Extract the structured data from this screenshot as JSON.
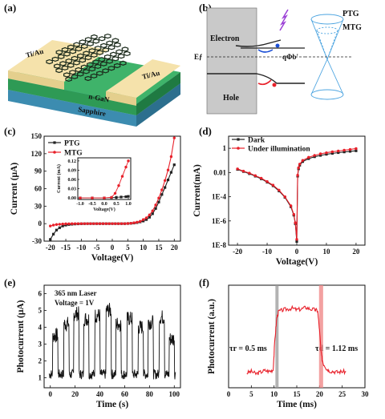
{
  "panels": {
    "a": {
      "label": "(a)",
      "electrode_left": "Ti/Au",
      "electrode_right": "Ti/Au",
      "layer_ngan": "n-GaN",
      "substrate": "Sapphire"
    },
    "b": {
      "label": "(b)",
      "electron": "Electron",
      "hole": "Hole",
      "ef": "Eƒ",
      "barrier": "qΦb'",
      "ptg": "PTG",
      "mtg": "MTG"
    },
    "c": {
      "label": "(c)"
    },
    "d": {
      "label": "(d)"
    },
    "e": {
      "label": "(e)",
      "note1": "365 nm Laser",
      "note2": "Voltage = 1V"
    },
    "f": {
      "label": "(f)",
      "tau_r": "τr = 0.5 ms",
      "tau_d": "τd = 1.12 ms"
    }
  },
  "colors": {
    "black_series": "#222222",
    "red_series": "#e8202a",
    "ngan": "#2e9a55",
    "sapphire": "#2c7b9a",
    "electrode": "#f2e0a8"
  },
  "chart_data": [
    {
      "id": "c",
      "type": "line",
      "xlabel": "Voltage(V)",
      "ylabel": "Current (μA)",
      "xlim": [
        -22,
        22
      ],
      "ylim": [
        -30,
        150
      ],
      "xticks": [
        "-20",
        "-15",
        "-10",
        "-5",
        "0",
        "5",
        "10",
        "15",
        "20"
      ],
      "yticks": [
        "-30",
        "0",
        "30",
        "60",
        "90",
        "120",
        "150"
      ],
      "legend": "top-left",
      "series": [
        {
          "name": "PTG",
          "color": "#222222",
          "x": [
            -20,
            -19,
            -18,
            -17,
            -16,
            -15,
            -14,
            -13,
            -12,
            -11,
            -10,
            -9,
            -8,
            -7,
            -6,
            -5,
            -4,
            -3,
            -2,
            -1,
            0,
            1,
            2,
            3,
            4,
            5,
            6,
            7,
            8,
            9,
            10,
            11,
            12,
            13,
            14,
            15,
            16,
            17,
            18,
            19,
            20
          ],
          "y": [
            -27,
            -18,
            -11,
            -7,
            -4,
            -2.5,
            -1.5,
            -1,
            -0.6,
            -0.4,
            -0.2,
            -0.1,
            0,
            0,
            0,
            0,
            0,
            0,
            0,
            0,
            0,
            0,
            0,
            0,
            0,
            0.2,
            0.5,
            1,
            1.8,
            3,
            4.5,
            7,
            11,
            17,
            26,
            37,
            50,
            62,
            75,
            88,
            101
          ]
        },
        {
          "name": "MTG",
          "color": "#e8202a",
          "x": [
            -20,
            -19,
            -18,
            -17,
            -16,
            -15,
            -14,
            -13,
            -12,
            -11,
            -10,
            -9,
            -8,
            -7,
            -6,
            -5,
            -4,
            -3,
            -2,
            -1,
            0,
            1,
            2,
            3,
            4,
            5,
            6,
            7,
            8,
            9,
            10,
            11,
            12,
            13,
            14,
            15,
            16,
            17,
            18,
            19,
            20
          ],
          "y": [
            -4,
            -2.5,
            -1.5,
            -1,
            -0.6,
            -0.3,
            -0.2,
            -0.1,
            0,
            0,
            0,
            0,
            0,
            0,
            0,
            0,
            0,
            0,
            0,
            0,
            0,
            0,
            0,
            0,
            0,
            0.3,
            0.7,
            1.5,
            2.5,
            4,
            7,
            10,
            15,
            22,
            32,
            44,
            58,
            74,
            92,
            115,
            147
          ]
        }
      ],
      "inset": {
        "xlabel": "Voltage(V)",
        "ylabel": "Current (mA)",
        "xlim": [
          -1.1,
          1.1
        ],
        "ylim": [
          -0.005,
          0.13
        ],
        "xticks": [
          "-1.0",
          "-0.5",
          "0.0",
          "0.5",
          "1.0"
        ],
        "yticks": [
          "0.00",
          "0.03",
          "0.06",
          "0.09",
          "0.12"
        ],
        "series": [
          {
            "name": "PTG",
            "color": "#222222",
            "x": [
              -1.0,
              -0.5,
              0.0,
              0.3,
              0.5,
              0.7,
              0.9,
              1.0
            ],
            "y": [
              0,
              0,
              0,
              0.001,
              0.002,
              0.003,
              0.004,
              0.005
            ]
          },
          {
            "name": "MTG",
            "color": "#e8202a",
            "x": [
              -1.0,
              -0.5,
              0.0,
              0.3,
              0.45,
              0.6,
              0.75,
              0.9,
              1.0
            ],
            "y": [
              0,
              0,
              0,
              0.002,
              0.015,
              0.04,
              0.07,
              0.1,
              0.12
            ]
          }
        ]
      }
    },
    {
      "id": "d",
      "type": "line",
      "xlabel": "Voltage(V)",
      "ylabel": "Current(mA)",
      "xlim": [
        -23,
        23
      ],
      "ylog": true,
      "ylim": [
        1e-08,
        10
      ],
      "xticks": [
        "-20",
        "-10",
        "0",
        "10",
        "20"
      ],
      "yticks": [
        "1E-8",
        "1E-6",
        "1E-4",
        "0.01",
        "1"
      ],
      "legend": "top-left",
      "series": [
        {
          "name": "Dark",
          "color": "#222222",
          "x": [
            -20,
            -18,
            -16,
            -14,
            -12,
            -10,
            -8,
            -6,
            -4,
            -2,
            -1,
            -0.5,
            0,
            0.3,
            0.6,
            1,
            2,
            4,
            6,
            8,
            10,
            12,
            14,
            16,
            18,
            20
          ],
          "y": [
            0.018,
            0.012,
            0.008,
            0.005,
            0.003,
            0.0016,
            0.0008,
            0.0003,
            9e-05,
            1.5e-05,
            3e-06,
            6e-07,
            2e-08,
            0.005,
            0.02,
            0.04,
            0.08,
            0.14,
            0.2,
            0.26,
            0.32,
            0.38,
            0.44,
            0.5,
            0.56,
            0.62
          ]
        },
        {
          "name": "Under illumination",
          "color": "#e8202a",
          "x": [
            -20,
            -18,
            -16,
            -14,
            -12,
            -10,
            -8,
            -6,
            -4,
            -2,
            -1,
            -0.5,
            0,
            0.3,
            0.6,
            1,
            2,
            4,
            6,
            8,
            10,
            12,
            14,
            16,
            18,
            20
          ],
          "y": [
            0.02,
            0.013,
            0.009,
            0.0055,
            0.0034,
            0.0018,
            0.0009,
            0.00035,
            0.0001,
            1.8e-05,
            3.5e-06,
            7e-07,
            3e-08,
            0.006,
            0.025,
            0.05,
            0.1,
            0.18,
            0.26,
            0.35,
            0.43,
            0.52,
            0.6,
            0.7,
            0.8,
            0.95
          ]
        }
      ]
    },
    {
      "id": "e",
      "type": "line",
      "xlabel": "Time (s)",
      "ylabel": "Photocurrent (μA)",
      "xlim": [
        -5,
        105
      ],
      "ylim": [
        0.4,
        6.5
      ],
      "xticks": [
        "0",
        "20",
        "40",
        "60",
        "80",
        "100"
      ],
      "yticks": [
        "1",
        "2",
        "3",
        "4",
        "5",
        "6"
      ],
      "pulses": {
        "on_start": [
          2,
          11,
          19,
          27,
          36,
          45,
          53,
          62,
          71,
          79,
          88,
          96
        ],
        "on_duration": 4.2,
        "on_level": [
          3.5,
          4.2,
          4.8,
          4.5,
          4.7,
          5.0,
          4.2,
          4.5,
          4.0,
          4.3,
          4.6,
          3.3
        ],
        "off_level": 1.2
      }
    },
    {
      "id": "f",
      "type": "line",
      "xlabel": "Time (ms)",
      "ylabel": "Photocurrent (a.u.)",
      "xlim": [
        0,
        30
      ],
      "ylim": [
        0,
        1.25
      ],
      "xticks": [
        "0",
        "5",
        "10",
        "15",
        "20",
        "25",
        "30"
      ],
      "x": [
        4,
        5,
        6,
        7,
        8,
        9,
        9.8,
        10.2,
        10.6,
        11,
        12,
        13,
        14,
        15,
        16,
        17,
        18,
        19,
        19.6,
        20.0,
        20.4,
        20.8,
        21.5,
        22,
        23,
        24,
        25,
        26
      ],
      "y": [
        0.18,
        0.2,
        0.17,
        0.19,
        0.21,
        0.2,
        0.22,
        0.6,
        0.85,
        0.93,
        0.95,
        0.96,
        0.97,
        0.95,
        0.96,
        0.98,
        0.96,
        0.95,
        0.94,
        0.7,
        0.4,
        0.3,
        0.24,
        0.21,
        0.2,
        0.19,
        0.2,
        0.19
      ],
      "shade_rise": [
        10.3,
        11.0
      ],
      "shade_fall": [
        19.9,
        20.8
      ]
    }
  ]
}
